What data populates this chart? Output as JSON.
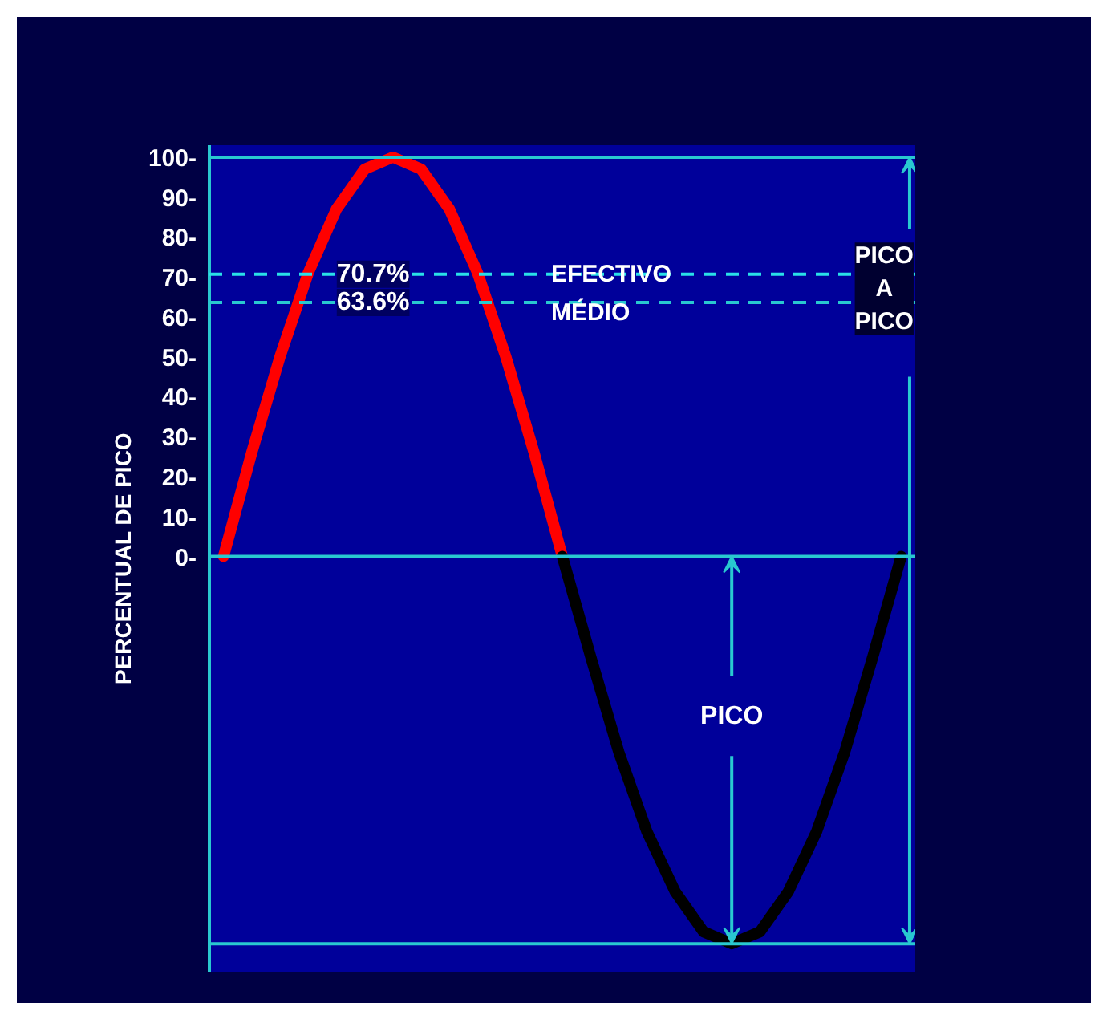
{
  "chart_data": {
    "type": "line",
    "ylabel": "PERCENTUAL DE PICO",
    "categories": [
      null,
      null,
      null,
      null,
      null,
      null,
      null,
      null,
      null,
      null,
      null,
      null,
      null,
      null,
      null,
      null,
      null,
      null,
      null,
      null,
      null,
      null,
      null,
      null,
      null
    ],
    "series": [
      {
        "color": "#ff0000",
        "values": [
          0,
          26,
          50,
          71,
          87,
          97,
          100,
          97,
          87,
          71,
          50,
          26,
          0,
          null,
          null,
          null,
          null,
          null,
          null,
          null,
          null,
          null,
          null,
          null,
          null
        ]
      },
      {
        "color": "#000000",
        "values": [
          null,
          null,
          null,
          null,
          null,
          null,
          null,
          null,
          null,
          null,
          null,
          null,
          0,
          -25,
          -49,
          -69,
          -84,
          -94,
          -97,
          -94,
          -84,
          -69,
          -49,
          -25,
          0
        ]
      }
    ],
    "ylim": [
      -104,
      103
    ],
    "yticks": [
      {
        "value": 0,
        "label": "0-"
      },
      {
        "value": 10,
        "label": "10-"
      },
      {
        "value": 20,
        "label": "20-"
      },
      {
        "value": 30,
        "label": "30-"
      },
      {
        "value": 40,
        "label": "40-"
      },
      {
        "value": 50,
        "label": "50-"
      },
      {
        "value": 60,
        "label": "60-"
      },
      {
        "value": 70,
        "label": "70-"
      },
      {
        "value": 80,
        "label": "80-"
      },
      {
        "value": 90,
        "label": "90-"
      },
      {
        "value": 100,
        "label": "100-"
      }
    ],
    "ref_lines": [
      {
        "axis": "y",
        "value": 100,
        "label": null,
        "color": "#29c8d0",
        "line_style": "solid"
      },
      {
        "axis": "y",
        "value": 0,
        "label": null,
        "color": "#29c8d0",
        "line_style": "solid"
      },
      {
        "axis": "y",
        "value": -97,
        "label": null,
        "color": "#29c8d0",
        "line_style": "solid"
      },
      {
        "axis": "y",
        "value": 70.7,
        "label": "70.7%",
        "color": "#29e0e8",
        "line_style": "dashed"
      },
      {
        "axis": "y",
        "value": 63.6,
        "label": "63.6%",
        "color": "#29c8d0",
        "line_style": "dashed"
      }
    ],
    "annotations": [
      "EFECTIVO",
      "MÉDIO",
      "PICO A PICO",
      "PICO"
    ],
    "grid": false,
    "marker": "none",
    "line_style": "solid"
  }
}
